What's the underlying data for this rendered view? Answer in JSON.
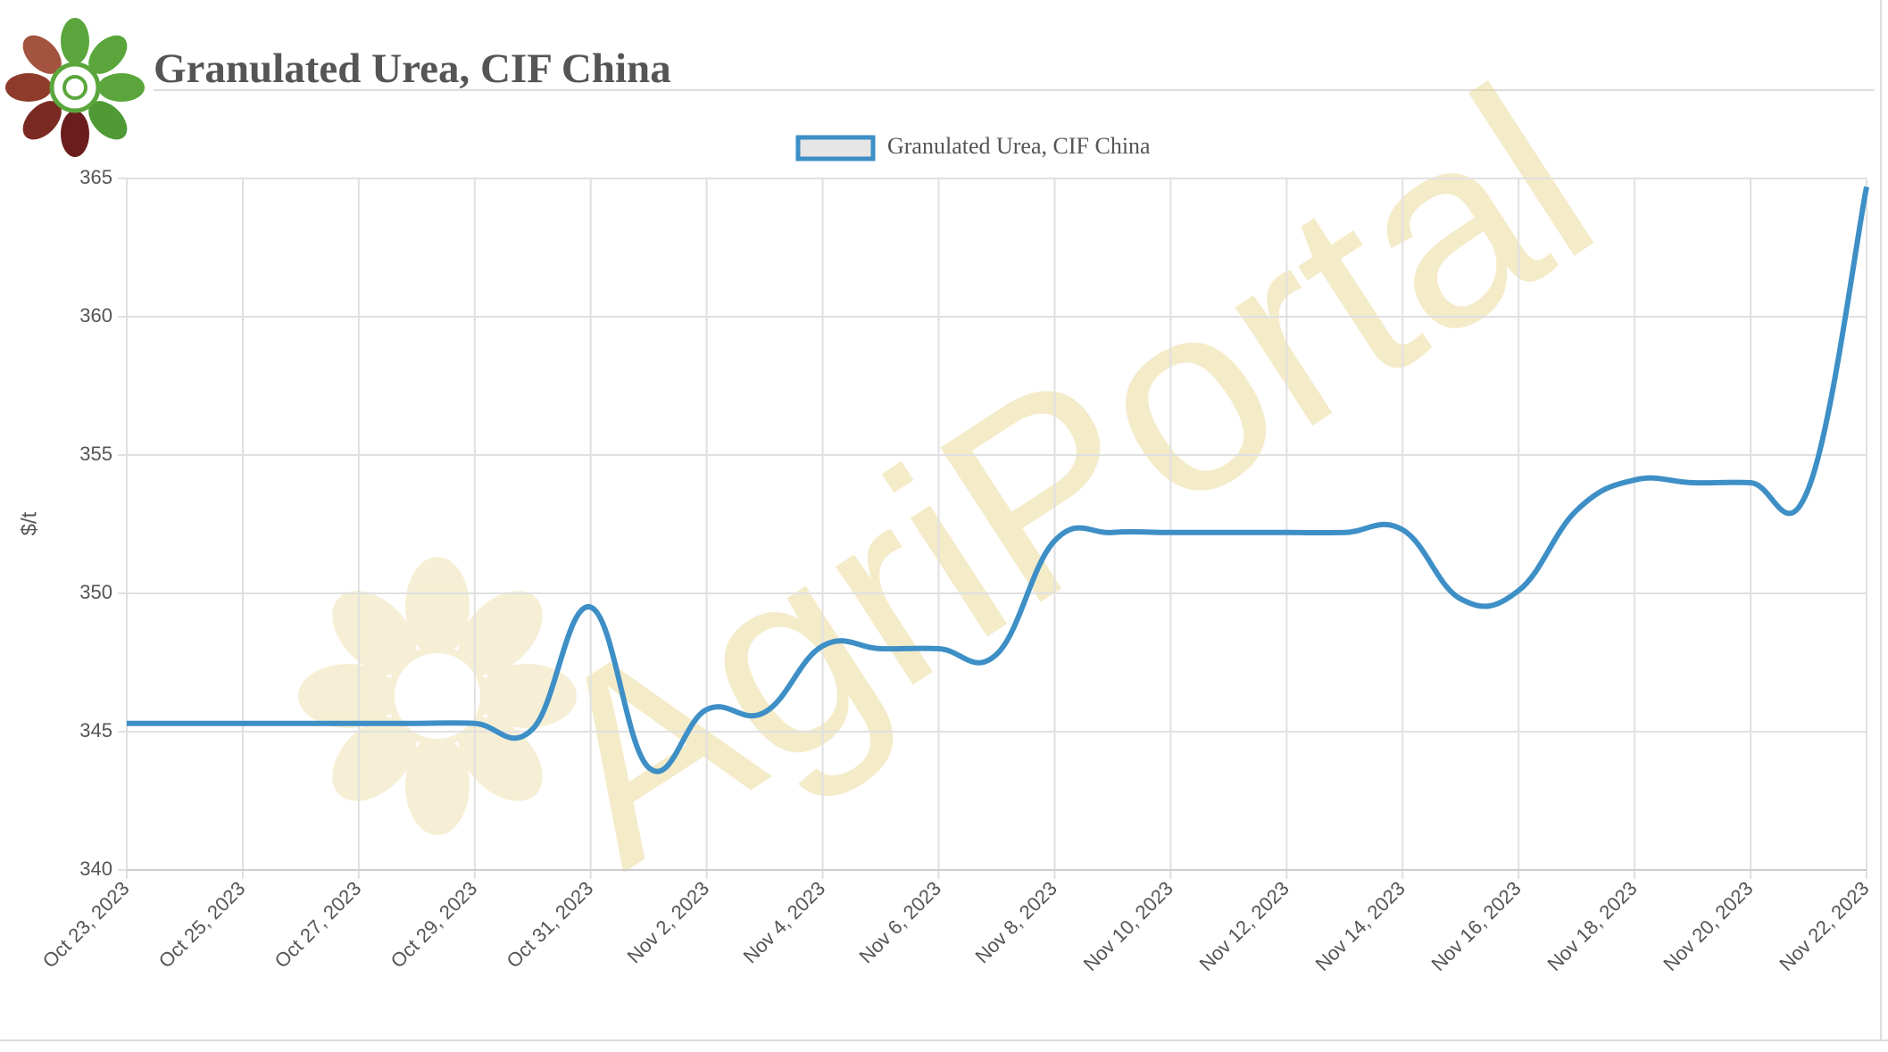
{
  "chart_data": {
    "type": "line",
    "title": "Granulated Urea, CIF China",
    "watermark": "AgriPortal",
    "y_label": "$/t",
    "categories": [
      "Oct 23, 2023",
      null,
      "Oct 25, 2023",
      null,
      "Oct 27, 2023",
      null,
      "Oct 29, 2023",
      null,
      "Oct 31, 2023",
      null,
      "Nov 2, 2023",
      null,
      "Nov 4, 2023",
      null,
      "Nov 6, 2023",
      null,
      "Nov 8, 2023",
      null,
      "Nov 10, 2023",
      null,
      "Nov 12, 2023",
      null,
      "Nov 14, 2023",
      null,
      "Nov 16, 2023",
      null,
      "Nov 18, 2023",
      null,
      "Nov 20, 2023",
      null,
      "Nov 22, 2023"
    ],
    "series": [
      {
        "name": "Granulated Urea, CIF China",
        "color": "#3d8fc6",
        "values": [
          345.3,
          345.3,
          345.3,
          345.3,
          345.3,
          345.3,
          345.3,
          345.1,
          349.5,
          343.7,
          345.8,
          345.7,
          348.1,
          348.0,
          348.0,
          347.8,
          351.9,
          352.2,
          352.2,
          352.2,
          352.2,
          352.2,
          352.3,
          349.8,
          350.1,
          353.0,
          354.1,
          354.0,
          354.0,
          353.8,
          364.7
        ]
      }
    ],
    "ylim": [
      340,
      365
    ],
    "yticks": [
      340,
      345,
      350,
      355,
      360,
      365
    ],
    "grid": true
  }
}
